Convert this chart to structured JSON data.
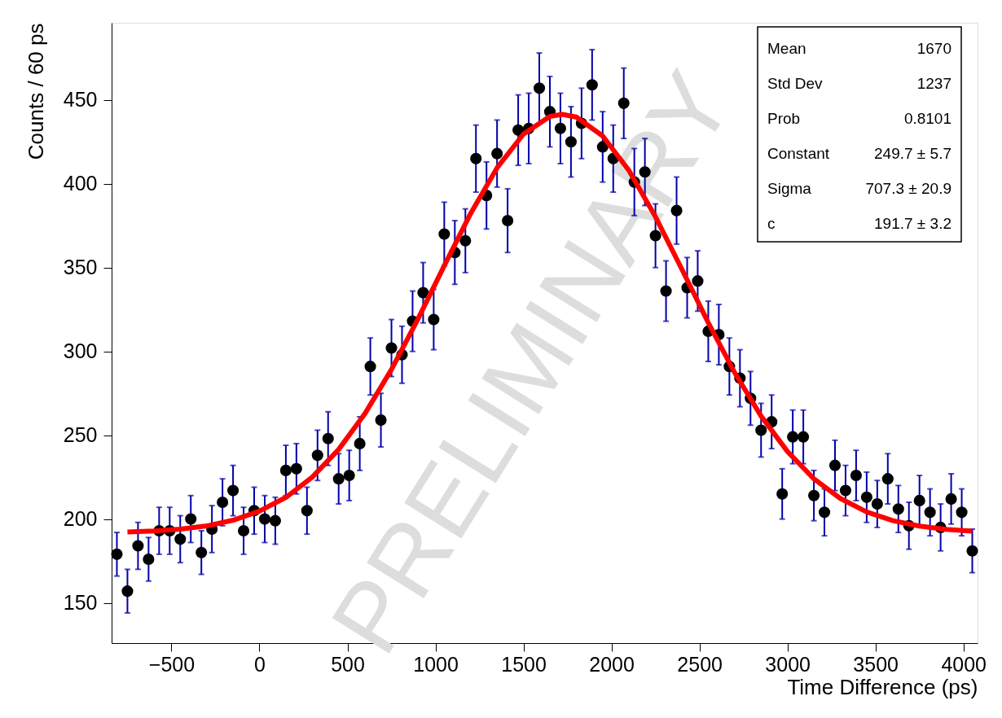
{
  "chart_data": {
    "type": "scatter",
    "xlabel": "Time Difference (ps)",
    "ylabel": "Counts / 60 ps",
    "xlim": [
      -840,
      4080
    ],
    "ylim": [
      126,
      496
    ],
    "xticks": [
      -500,
      0,
      500,
      1000,
      1500,
      2000,
      2500,
      3000,
      3500,
      4000
    ],
    "yticks": [
      150,
      200,
      250,
      300,
      350,
      400,
      450
    ],
    "series": [
      {
        "color": "#000000",
        "marker": "circle",
        "x": [
          -810,
          -750,
          -690,
          -630,
          -570,
          -510,
          -450,
          -390,
          -330,
          -270,
          -210,
          -150,
          -90,
          -30,
          30,
          90,
          150,
          210,
          270,
          330,
          390,
          450,
          510,
          570,
          630,
          690,
          750,
          810,
          870,
          930,
          990,
          1050,
          1110,
          1170,
          1230,
          1290,
          1350,
          1410,
          1470,
          1530,
          1590,
          1650,
          1710,
          1770,
          1830,
          1890,
          1950,
          2010,
          2070,
          2130,
          2190,
          2250,
          2310,
          2370,
          2430,
          2490,
          2550,
          2610,
          2670,
          2730,
          2790,
          2850,
          2910,
          2970,
          3030,
          3090,
          3150,
          3210,
          3270,
          3330,
          3390,
          3450,
          3510,
          3570,
          3630,
          3690,
          3750,
          3810,
          3870,
          3930,
          3990,
          4050
        ],
        "values": [
          179,
          157,
          184,
          176,
          193,
          193,
          188,
          200,
          180,
          194,
          210,
          217,
          193,
          205,
          200,
          199,
          229,
          230,
          205,
          238,
          248,
          224,
          226,
          245,
          291,
          259,
          302,
          298,
          318,
          335,
          319,
          370,
          359,
          366,
          415,
          393,
          418,
          378,
          432,
          433,
          457,
          443,
          433,
          425,
          436,
          459,
          422,
          415,
          448,
          401,
          407,
          369,
          336,
          384,
          338,
          342,
          312,
          310,
          291,
          284,
          272,
          253,
          258,
          215,
          249,
          249,
          214,
          204,
          232,
          217,
          226,
          213,
          209,
          224,
          206,
          196,
          211,
          204,
          195,
          212,
          204,
          181
        ],
        "errors": [
          13,
          13,
          14,
          13,
          14,
          14,
          14,
          14,
          13,
          14,
          14,
          15,
          14,
          14,
          14,
          14,
          15,
          15,
          14,
          15,
          16,
          15,
          15,
          16,
          17,
          16,
          17,
          17,
          18,
          18,
          18,
          19,
          19,
          19,
          20,
          20,
          20,
          19,
          21,
          21,
          21,
          21,
          21,
          21,
          21,
          21,
          21,
          20,
          21,
          20,
          20,
          19,
          18,
          20,
          18,
          18,
          18,
          18,
          17,
          17,
          16,
          16,
          16,
          15,
          16,
          16,
          15,
          14,
          15,
          15,
          15,
          15,
          14,
          15,
          14,
          14,
          15,
          14,
          14,
          15,
          14,
          13
        ]
      },
      {
        "type": "line",
        "color": "#ff0000",
        "line_style": "solid",
        "x": [
          -750,
          -600,
          -450,
          -300,
          -150,
          0,
          150,
          300,
          450,
          600,
          750,
          900,
          1050,
          1200,
          1350,
          1500,
          1650,
          1720,
          1800,
          1950,
          2100,
          2250,
          2400,
          2550,
          2700,
          2850,
          3000,
          3150,
          3300,
          3450,
          3600,
          3750,
          3900,
          4050
        ],
        "values": [
          192.3,
          192.9,
          194.0,
          195.9,
          199.3,
          204.7,
          212.9,
          225.0,
          241.5,
          263.0,
          289.2,
          319.2,
          351.1,
          382.3,
          409.5,
          429.6,
          440.2,
          441.4,
          439.8,
          428.5,
          407.8,
          380.3,
          349.0,
          317.1,
          287.3,
          261.4,
          240.3,
          224.0,
          212.3,
          204.2,
          199.0,
          195.8,
          193.9,
          192.8
        ]
      }
    ],
    "annotations": [
      "Mean",
      "1670",
      "Std Dev",
      "1237",
      "Prob",
      "0.8101",
      "Constant",
      "249.7 ± 5.7",
      "Sigma",
      "707.3 ± 20.9",
      "c",
      "191.7 ± 3.2",
      "PRELIMINARY"
    ]
  }
}
